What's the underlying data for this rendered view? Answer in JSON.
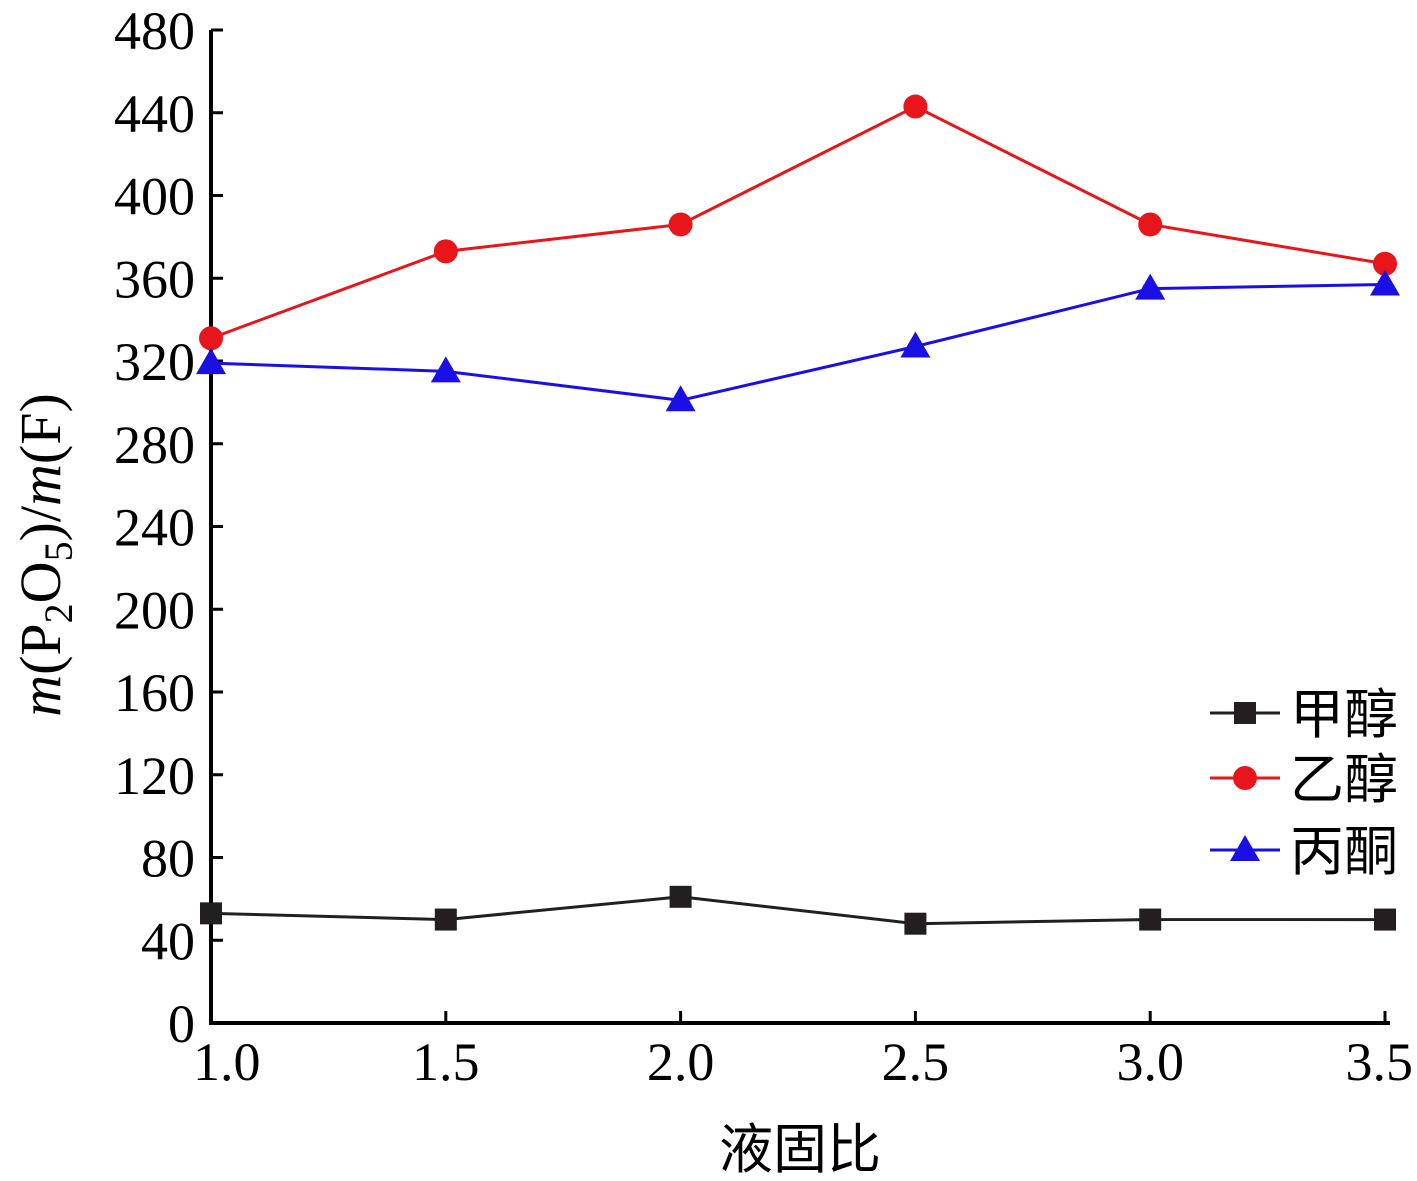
{
  "chart_data": {
    "type": "line",
    "title": "",
    "xlabel": "液固比",
    "ylabel": {
      "m1": "m",
      "p1": "(P",
      "sub1": "2",
      "o": "O",
      "sub2": "5",
      "p2": ")/",
      "m2": "m",
      "p3": "(F)"
    },
    "x": [
      1.0,
      1.5,
      2.0,
      2.5,
      3.0,
      3.5
    ],
    "x_tick_labels": [
      "1.0",
      "1.5",
      "2.0",
      "2.5",
      "3.0",
      "3.5"
    ],
    "y_tick_labels": [
      "0",
      "40",
      "80",
      "120",
      "160",
      "200",
      "240",
      "280",
      "320",
      "360",
      "400",
      "440",
      "480"
    ],
    "xlim": [
      1.0,
      3.5
    ],
    "ylim": [
      0,
      480
    ],
    "grid": false,
    "legend_position": "right",
    "series": [
      {
        "name": "甲醇",
        "marker": "square",
        "color": "#231f20",
        "values": [
          53,
          50,
          61,
          48,
          50,
          50
        ]
      },
      {
        "name": "乙醇",
        "marker": "circle",
        "color": "#e8161b",
        "values": [
          331,
          373,
          386,
          443,
          386,
          367
        ]
      },
      {
        "name": "丙酮",
        "marker": "triangle",
        "color": "#1a10e6",
        "values": [
          319,
          315,
          301,
          327,
          355,
          357
        ]
      }
    ]
  }
}
